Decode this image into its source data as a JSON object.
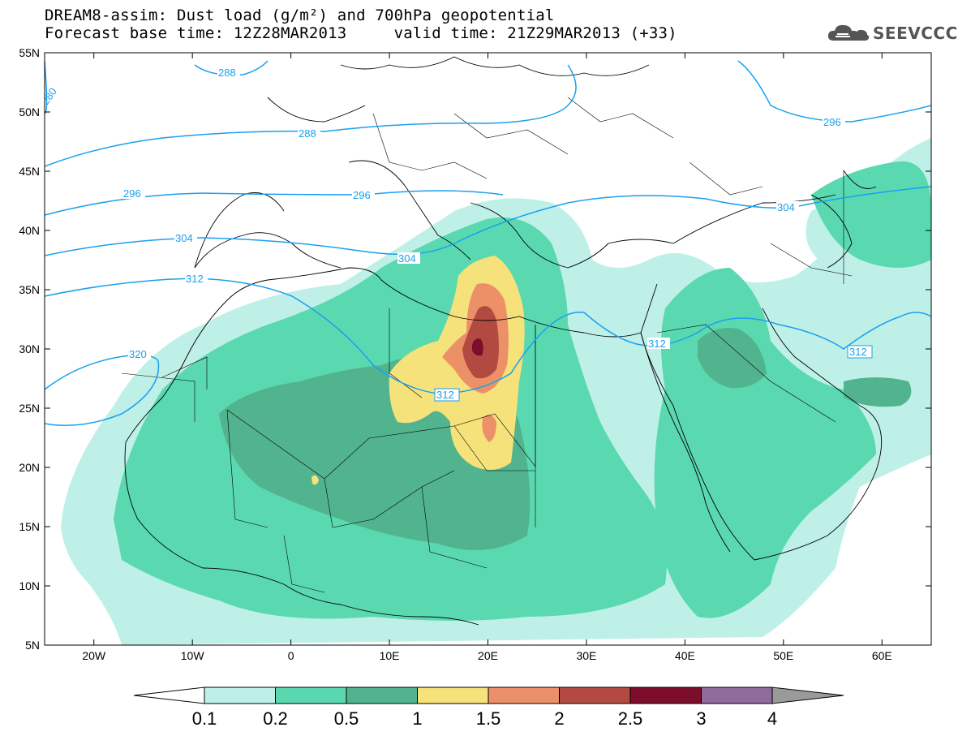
{
  "title": {
    "line1": "DREAM8-assim: Dust load (g/m²) and 700hPa geopotential",
    "line2": "Forecast base time: 12Z28MAR2013     valid time: 21Z29MAR2013 (+33)"
  },
  "logo": {
    "text": "SEEVCCC",
    "icon": "cloud-icon"
  },
  "map": {
    "projection": "lat-lon",
    "lon_range": [
      -25,
      65
    ],
    "lat_range": [
      5,
      55
    ],
    "lat_ticks": [
      "55N",
      "50N",
      "45N",
      "40N",
      "35N",
      "30N",
      "25N",
      "20N",
      "15N",
      "10N",
      "5N"
    ],
    "lon_ticks": [
      "20W",
      "10W",
      "0",
      "10E",
      "20E",
      "30E",
      "40E",
      "50E",
      "60E"
    ]
  },
  "contours": {
    "variable": "700hPa geopotential",
    "color": "#1aa0ee",
    "labels": [
      "280",
      "288",
      "288",
      "296",
      "296",
      "296",
      "304",
      "304",
      "304",
      "312",
      "312",
      "312",
      "312",
      "320"
    ]
  },
  "colorbar": {
    "labels": [
      "0.1",
      "0.2",
      "0.5",
      "1",
      "1.5",
      "2",
      "2.5",
      "3",
      "4"
    ],
    "colors": [
      "#ffffff",
      "#bff0e8",
      "#5ad9b0",
      "#52b48e",
      "#f5e27a",
      "#ec9068",
      "#b24a42",
      "#7c0e2c",
      "#8e6c9c",
      "#9a9a9a"
    ]
  },
  "chart_data": {
    "type": "heatmap",
    "title": "DREAM8-assim: Dust load (g/m²) and 700hPa geopotential",
    "subtitle": "Forecast base time: 12Z28MAR2013     valid time: 21Z29MAR2013 (+33)",
    "x_ticks": [
      "20W",
      "10W",
      "0",
      "10E",
      "20E",
      "30E",
      "40E",
      "50E",
      "60E"
    ],
    "y_ticks": [
      "55N",
      "50N",
      "45N",
      "40N",
      "35N",
      "30N",
      "25N",
      "20N",
      "15N",
      "10N",
      "5N"
    ],
    "xlim": [
      -25,
      65
    ],
    "ylim": [
      5,
      55
    ],
    "levels": [
      0.1,
      0.2,
      0.5,
      1,
      1.5,
      2,
      2.5,
      3,
      4
    ],
    "max_region": {
      "lon": 19,
      "lat": 30,
      "level": 3
    },
    "geopotential_contours": [
      280,
      288,
      296,
      304,
      312,
      320
    ]
  }
}
